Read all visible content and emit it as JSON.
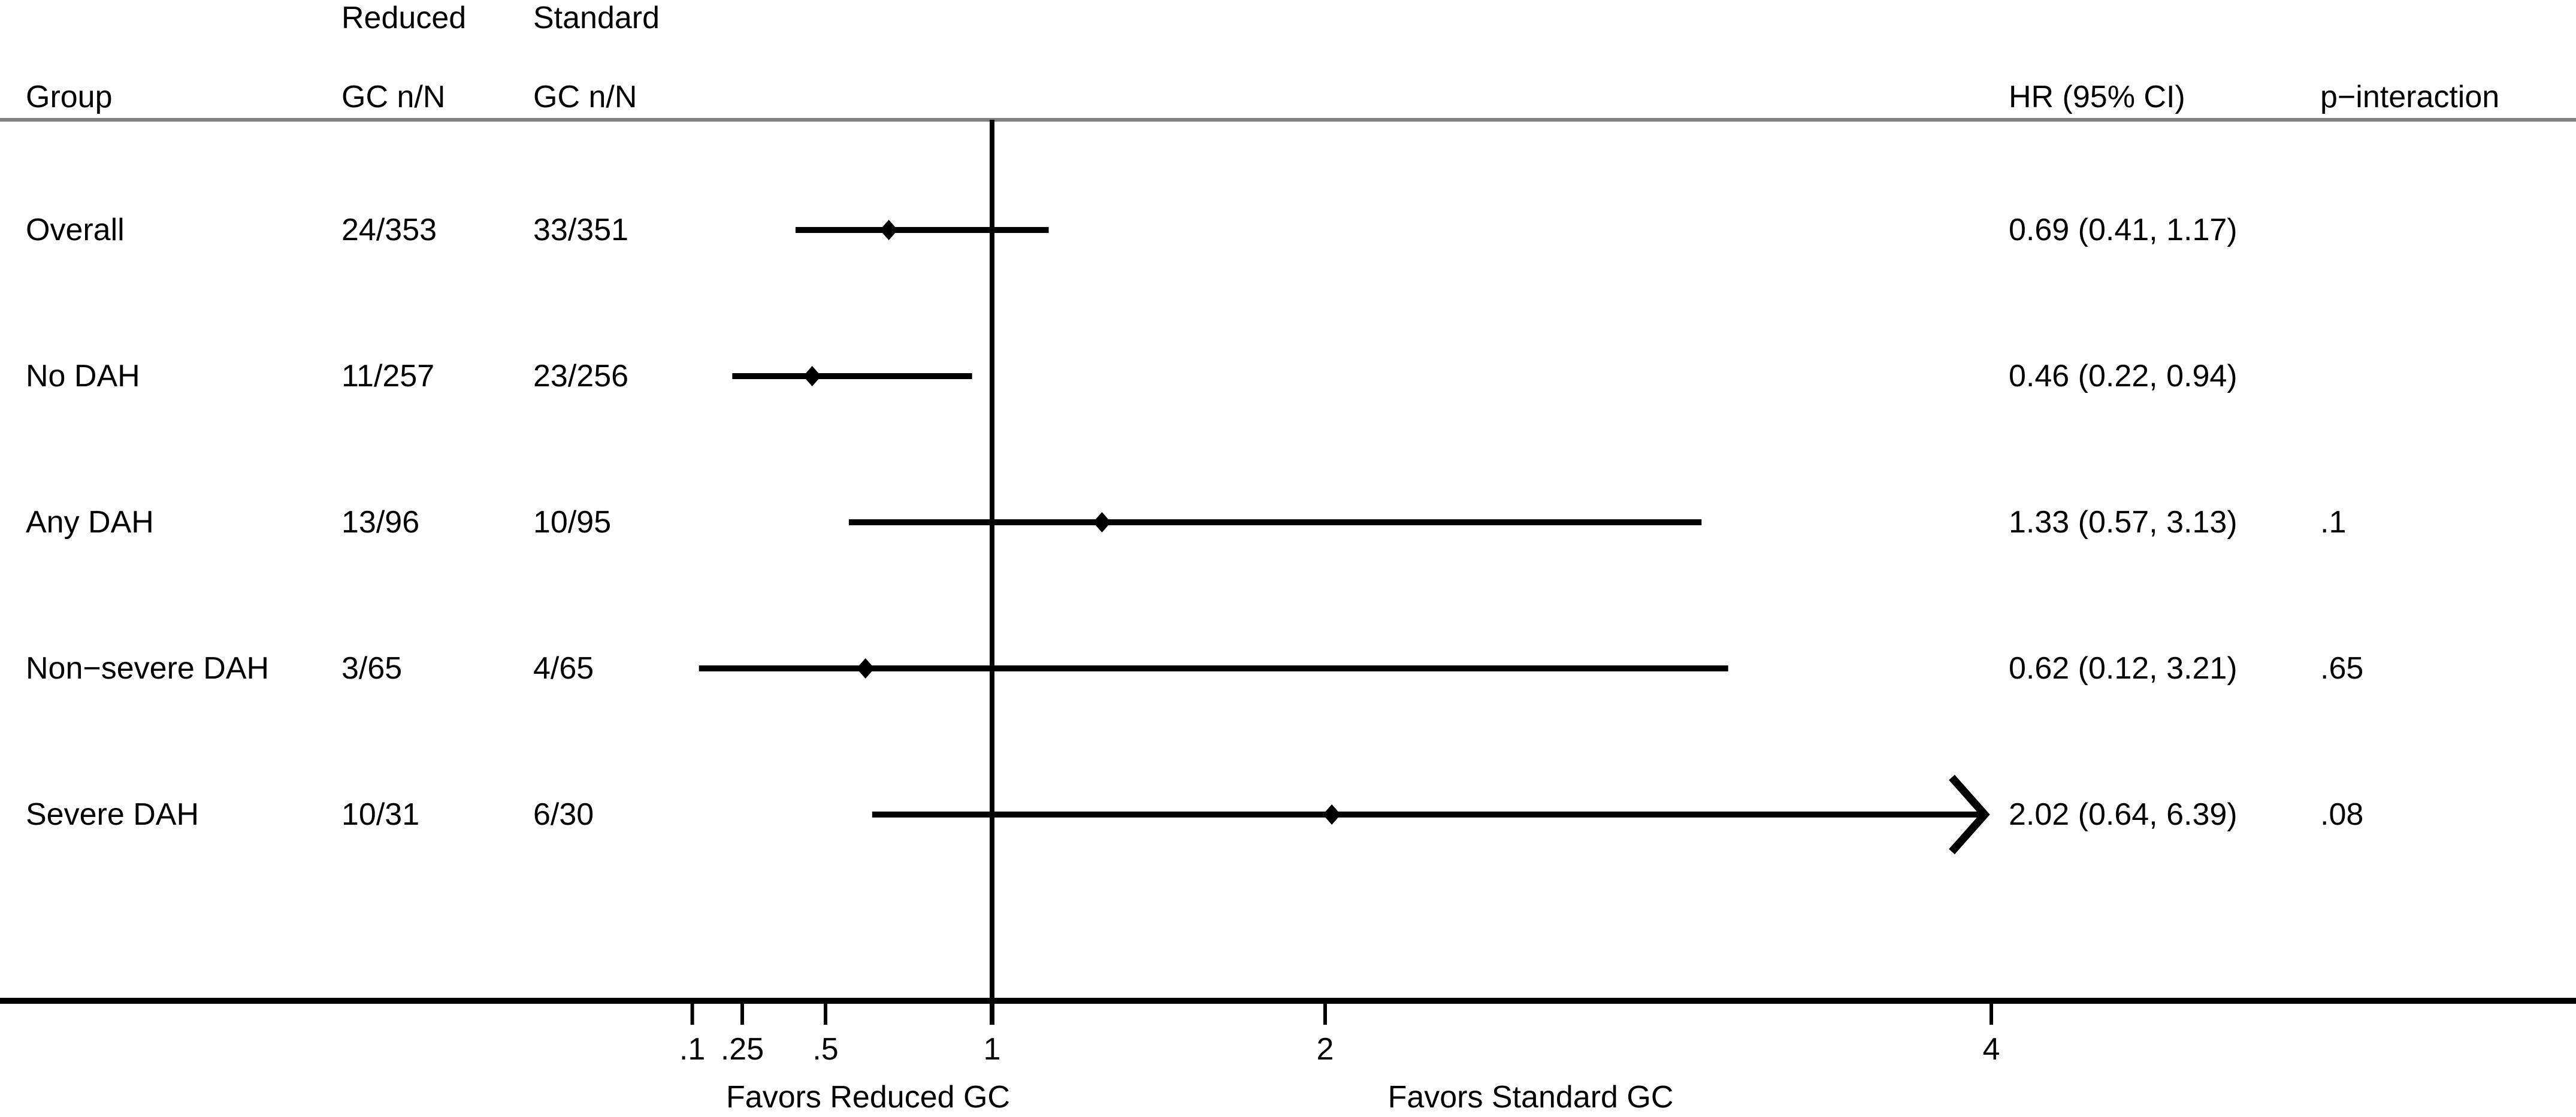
{
  "colors": {
    "ink": "#000000",
    "separator_gray": "#808080",
    "background": "#ffffff"
  },
  "header": {
    "col_group": "Group",
    "col_reduced_line1": "Reduced",
    "col_reduced_line2": "GC n/N",
    "col_standard_line1": "Standard",
    "col_standard_line2": "GC n/N",
    "col_hr": "HR (95% CI)",
    "col_p": "p−interaction"
  },
  "chart_data": {
    "type": "scatter",
    "variant": "forest-plot",
    "x_axis": {
      "scale": "linear",
      "ticks": [
        0.1,
        0.25,
        0.5,
        1,
        2,
        4
      ],
      "tick_labels": [
        ".1",
        ".25",
        ".5",
        "1",
        "2",
        "4"
      ],
      "reference_line": 1,
      "clip_max": 4
    },
    "footer_labels": {
      "left": "Favors Reduced GC",
      "right": "Favors Standard GC"
    },
    "rows": [
      {
        "group": "Overall",
        "reduced_gc": "24/353",
        "standard_gc": "33/351",
        "hr": 0.69,
        "ci_low": 0.41,
        "ci_high": 1.17,
        "hr_text": "0.69 (0.41, 1.17)",
        "p_interaction": "",
        "arrow_right": false
      },
      {
        "group": "No DAH",
        "reduced_gc": "11/257",
        "standard_gc": "23/256",
        "hr": 0.46,
        "ci_low": 0.22,
        "ci_high": 0.94,
        "hr_text": "0.46 (0.22, 0.94)",
        "p_interaction": "",
        "arrow_right": false
      },
      {
        "group": "Any DAH",
        "reduced_gc": "13/96",
        "standard_gc": "10/95",
        "hr": 1.33,
        "ci_low": 0.57,
        "ci_high": 3.13,
        "hr_text": "1.33 (0.57, 3.13)",
        "p_interaction": ".1",
        "arrow_right": false
      },
      {
        "group": "Non−severe DAH",
        "reduced_gc": "3/65",
        "standard_gc": "4/65",
        "hr": 0.62,
        "ci_low": 0.12,
        "ci_high": 3.21,
        "hr_text": "0.62 (0.12, 3.21)",
        "p_interaction": ".65",
        "arrow_right": false
      },
      {
        "group": "Severe DAH",
        "reduced_gc": "10/31",
        "standard_gc": "6/30",
        "hr": 2.02,
        "ci_low": 0.64,
        "ci_high": 6.39,
        "hr_text": "2.02 (0.64, 6.39)",
        "p_interaction": ".08",
        "arrow_right": true
      }
    ]
  }
}
